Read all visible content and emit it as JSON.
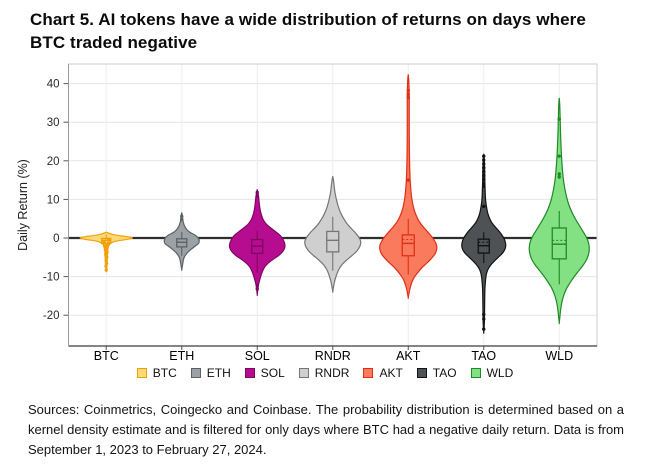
{
  "title": {
    "text": "Chart 5. AI tokens have a wide distribution of returns on days where BTC traded negative"
  },
  "chart_data": {
    "type": "violin",
    "title": "Chart 5. AI tokens have a wide distribution of returns on days where BTC traded negative",
    "xlabel": "",
    "ylabel": "Daily Return (%)",
    "ylim": [
      -28,
      45
    ],
    "yticks": [
      40,
      30,
      20,
      10,
      0,
      -10,
      -20
    ],
    "grid": "on",
    "legend_position": "bottom",
    "zero_line_value": 0,
    "categories": [
      "BTC",
      "ETH",
      "SOL",
      "RNDR",
      "AKT",
      "TAO",
      "WLD"
    ],
    "layout_colors": {
      "background": "#ffffff",
      "gridline": "#e4e4e4",
      "panel_border": "#cccccc",
      "axis_line": "#3c3c3c",
      "zero_line": "#2e2e2e",
      "tick_text": "#2b2b2b"
    },
    "series": [
      {
        "name": "BTC",
        "fill": "#FCD975",
        "stroke": "#EFA00B",
        "profile": [
          [
            1.5,
            0
          ],
          [
            0.9,
            7
          ],
          [
            0.3,
            22
          ],
          [
            0,
            26
          ],
          [
            -0.4,
            20
          ],
          [
            -0.8,
            10
          ],
          [
            -1.3,
            5
          ],
          [
            -2,
            2.5
          ],
          [
            -3,
            1.6
          ],
          [
            -4.5,
            1.2
          ],
          [
            -6,
            0.9
          ],
          [
            -7.5,
            0.6
          ],
          [
            -8.6,
            0
          ]
        ],
        "box": {
          "q3": -0.1,
          "q1": -1.4,
          "median": -0.6,
          "whisker_high": 0.9,
          "whisker_low": -2.4,
          "half_width": 4.5
        },
        "outliers": [
          [
            -0.4,
            2
          ],
          [
            -0.9,
            -2
          ],
          [
            -1.3,
            2.5
          ],
          [
            -1.7,
            1.5
          ],
          [
            -2.1,
            -1.5
          ],
          [
            -2.6,
            0.5
          ],
          [
            -3.1,
            -0.8
          ],
          [
            -3.7,
            0.8
          ],
          [
            -4.3,
            -0.5
          ],
          [
            -5,
            0.5
          ],
          [
            -5.8,
            0
          ],
          [
            -6.6,
            0.3
          ],
          [
            -7.3,
            -0.3
          ],
          [
            -8.3,
            0
          ]
        ]
      },
      {
        "name": "ETH",
        "fill": "#9CA1A5",
        "stroke": "#5C6166",
        "profile": [
          [
            6.6,
            0
          ],
          [
            5.8,
            0.6
          ],
          [
            5,
            0.9
          ],
          [
            4,
            1.6
          ],
          [
            3,
            3
          ],
          [
            2.2,
            5
          ],
          [
            1.5,
            8
          ],
          [
            0.8,
            13
          ],
          [
            0,
            16.5
          ],
          [
            -0.8,
            17.5
          ],
          [
            -1.5,
            16.5
          ],
          [
            -2.2,
            13
          ],
          [
            -3,
            9
          ],
          [
            -4,
            5
          ],
          [
            -5,
            2.5
          ],
          [
            -6,
            1.4
          ],
          [
            -7,
            0.8
          ],
          [
            -8.2,
            0
          ]
        ],
        "box": {
          "q3": -0.2,
          "q1": -2.3,
          "median": -1.1,
          "whisker_high": 1.6,
          "whisker_low": -4.6,
          "half_width": 5
        },
        "outliers": [
          [
            5.6,
            0
          ],
          [
            4.8,
            0
          ]
        ]
      },
      {
        "name": "SOL",
        "fill": "#B60D90",
        "stroke": "#7E0663",
        "profile": [
          [
            12.6,
            0
          ],
          [
            11.5,
            0.8
          ],
          [
            10.6,
            1.4
          ],
          [
            9.5,
            1.8
          ],
          [
            8.5,
            2.2
          ],
          [
            7.5,
            2.8
          ],
          [
            6.5,
            3.6
          ],
          [
            5.5,
            4.8
          ],
          [
            4.5,
            6.5
          ],
          [
            3.5,
            9.5
          ],
          [
            2.5,
            14
          ],
          [
            1.5,
            19
          ],
          [
            0.5,
            23.5
          ],
          [
            -0.5,
            26
          ],
          [
            -1.5,
            27.5
          ],
          [
            -2.5,
            27.5
          ],
          [
            -3.5,
            25.5
          ],
          [
            -4.5,
            21.5
          ],
          [
            -5.5,
            16
          ],
          [
            -6.5,
            11
          ],
          [
            -7.5,
            7.5
          ],
          [
            -8.5,
            5.5
          ],
          [
            -9.5,
            4
          ],
          [
            -10.5,
            2.8
          ],
          [
            -11.5,
            1.8
          ],
          [
            -12.5,
            1
          ],
          [
            -14.6,
            0
          ]
        ],
        "box": {
          "q3": -0.4,
          "q1": -4.0,
          "median": -2.1,
          "whisker_high": 1.8,
          "whisker_low": -9,
          "half_width": 5.5
        },
        "outliers": [
          [
            10.9,
            0
          ],
          [
            11.8,
            0
          ],
          [
            -12.3,
            0
          ],
          [
            -13.2,
            0
          ]
        ]
      },
      {
        "name": "RNDR",
        "fill": "#CFCFCF",
        "stroke": "#757575",
        "profile": [
          [
            16,
            0
          ],
          [
            14.8,
            0.8
          ],
          [
            13.5,
            1.4
          ],
          [
            12.2,
            2
          ],
          [
            11,
            2.8
          ],
          [
            9.8,
            3.8
          ],
          [
            8.6,
            5
          ],
          [
            7.4,
            6.5
          ],
          [
            6.2,
            8.5
          ],
          [
            5,
            11
          ],
          [
            3.8,
            14
          ],
          [
            2.6,
            18
          ],
          [
            1.4,
            22.5
          ],
          [
            0.2,
            26
          ],
          [
            -1,
            28
          ],
          [
            -2.2,
            27
          ],
          [
            -3.4,
            24
          ],
          [
            -4.6,
            19
          ],
          [
            -5.8,
            13.5
          ],
          [
            -7,
            9
          ],
          [
            -8.2,
            6
          ],
          [
            -9.4,
            4
          ],
          [
            -10.6,
            2.5
          ],
          [
            -11.8,
            1.4
          ],
          [
            -13.8,
            0
          ]
        ],
        "box": {
          "q3": 1.7,
          "q1": -3.6,
          "median": -0.6,
          "whisker_high": 5.5,
          "whisker_low": -8.5,
          "half_width": 6
        },
        "outliers": []
      },
      {
        "name": "AKT",
        "fill": "#F97A5D",
        "stroke": "#E02F17",
        "profile": [
          [
            42.4,
            0
          ],
          [
            41,
            0.5
          ],
          [
            39,
            0.8
          ],
          [
            36,
            1
          ],
          [
            32,
            1
          ],
          [
            28,
            1
          ],
          [
            24,
            1.1
          ],
          [
            20,
            1.3
          ],
          [
            17,
            1.6
          ],
          [
            14.5,
            2
          ],
          [
            12.5,
            2.6
          ],
          [
            10.5,
            3.4
          ],
          [
            8.8,
            4.5
          ],
          [
            7.2,
            6
          ],
          [
            5.8,
            8
          ],
          [
            4.5,
            10.5
          ],
          [
            3.2,
            14
          ],
          [
            2,
            18
          ],
          [
            0.8,
            22
          ],
          [
            -0.4,
            25.5
          ],
          [
            -1.6,
            28
          ],
          [
            -2.8,
            28.5
          ],
          [
            -4,
            27
          ],
          [
            -5.2,
            23.5
          ],
          [
            -6.4,
            19
          ],
          [
            -7.6,
            14
          ],
          [
            -8.8,
            10
          ],
          [
            -10,
            6.5
          ],
          [
            -11.2,
            4
          ],
          [
            -12.4,
            2.5
          ],
          [
            -13.6,
            1.3
          ],
          [
            -15.4,
            0
          ]
        ],
        "box": {
          "q3": 0.8,
          "q1": -4.6,
          "median": -1.4,
          "mean": -0.4,
          "whisker_high": 5,
          "whisker_low": -9.5,
          "half_width": 6
        },
        "outliers": [
          [
            38.2,
            0
          ],
          [
            37.2,
            0
          ],
          [
            36.4,
            0
          ],
          [
            15,
            0
          ]
        ]
      },
      {
        "name": "TAO",
        "fill": "#4F5254",
        "stroke": "#121212",
        "profile": [
          [
            21.8,
            0
          ],
          [
            20.5,
            0.5
          ],
          [
            19,
            0.7
          ],
          [
            17.5,
            0.9
          ],
          [
            16,
            1
          ],
          [
            14.5,
            1.1
          ],
          [
            13,
            1.3
          ],
          [
            11.5,
            1.5
          ],
          [
            10,
            1.8
          ],
          [
            9,
            2.2
          ],
          [
            8,
            2.8
          ],
          [
            7,
            3.5
          ],
          [
            6,
            4.5
          ],
          [
            5,
            6
          ],
          [
            4,
            8
          ],
          [
            3,
            11
          ],
          [
            2,
            14.5
          ],
          [
            1,
            17.5
          ],
          [
            0,
            20
          ],
          [
            -1,
            21.5
          ],
          [
            -2,
            22
          ],
          [
            -3,
            21
          ],
          [
            -4,
            18.5
          ],
          [
            -5,
            14.5
          ],
          [
            -6,
            10.5
          ],
          [
            -7,
            7
          ],
          [
            -8,
            4.5
          ],
          [
            -9,
            3
          ],
          [
            -10,
            2.2
          ],
          [
            -11.5,
            1.6
          ],
          [
            -13,
            1.2
          ],
          [
            -15,
            1
          ],
          [
            -17,
            0.9
          ],
          [
            -19,
            0.8
          ],
          [
            -21,
            0.7
          ],
          [
            -22.5,
            0.5
          ],
          [
            -24.4,
            0
          ]
        ],
        "box": {
          "q3": -0.3,
          "q1": -3.9,
          "median": -2.0,
          "mean": -1.1,
          "whisker_high": 1.5,
          "whisker_low": -6.5,
          "half_width": 5.5
        },
        "outliers": [
          [
            21.2,
            0
          ],
          [
            20.2,
            0
          ],
          [
            19.2,
            0
          ],
          [
            18.2,
            0
          ],
          [
            17.2,
            0
          ],
          [
            16.2,
            0
          ],
          [
            15.2,
            0
          ],
          [
            14.2,
            0
          ],
          [
            13.4,
            0
          ],
          [
            8.2,
            0
          ],
          [
            -19.8,
            0
          ],
          [
            -21,
            0
          ],
          [
            -23.6,
            0
          ]
        ]
      },
      {
        "name": "WLD",
        "fill": "#83E083",
        "stroke": "#1E8A28",
        "profile": [
          [
            36.3,
            0
          ],
          [
            35,
            0.4
          ],
          [
            33,
            0.7
          ],
          [
            31,
            0.9
          ],
          [
            29,
            1.1
          ],
          [
            27,
            1.3
          ],
          [
            25,
            1.6
          ],
          [
            23,
            1.9
          ],
          [
            21,
            2.3
          ],
          [
            19,
            2.8
          ],
          [
            17,
            3.4
          ],
          [
            15.5,
            4
          ],
          [
            14,
            4.8
          ],
          [
            12.5,
            5.8
          ],
          [
            11,
            7
          ],
          [
            9.5,
            8.5
          ],
          [
            8,
            10.5
          ],
          [
            6.5,
            13
          ],
          [
            5,
            16
          ],
          [
            3.5,
            19.5
          ],
          [
            2,
            23
          ],
          [
            0.5,
            26.5
          ],
          [
            -1,
            29
          ],
          [
            -2.5,
            30
          ],
          [
            -4,
            29.5
          ],
          [
            -5.5,
            27.5
          ],
          [
            -7,
            24
          ],
          [
            -8.5,
            19.5
          ],
          [
            -10,
            15
          ],
          [
            -11.5,
            11
          ],
          [
            -13,
            7.5
          ],
          [
            -14.5,
            5
          ],
          [
            -16,
            3.2
          ],
          [
            -17.5,
            2
          ],
          [
            -19,
            1.2
          ],
          [
            -20.5,
            0.6
          ],
          [
            -22,
            0
          ]
        ],
        "box": {
          "q3": 2.6,
          "q1": -5.4,
          "median": -1.6,
          "mean": -0.6,
          "whisker_high": 7,
          "whisker_low": -12,
          "half_width": 7
        },
        "outliers": [
          [
            30.8,
            0
          ],
          [
            21.2,
            0
          ],
          [
            16.6,
            0
          ],
          [
            15.8,
            0
          ]
        ]
      }
    ]
  },
  "footer": {
    "text": "Sources: Coinmetrics, Coingecko and Coinbase. The probability distribution is determined based on a kernel density estimate and is filtered for only days where BTC had a negative daily return. Data is from September 1, 2023 to February 27, 2024."
  }
}
